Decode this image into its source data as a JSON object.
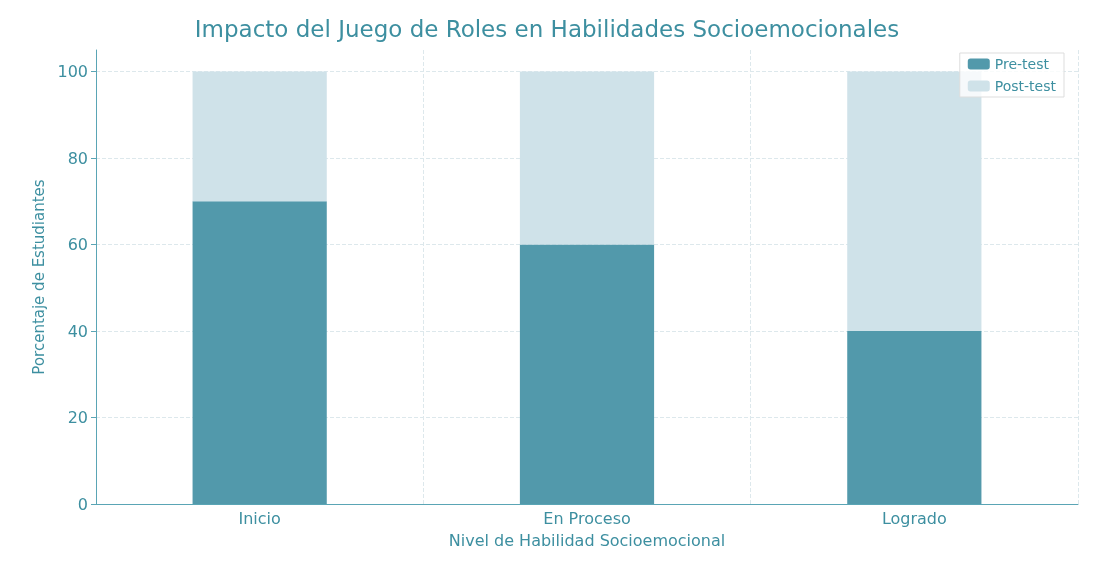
{
  "chart_data": {
    "type": "bar",
    "title": "Impacto del Juego de Roles en Habilidades Socioemocionales",
    "xlabel": "Nivel de Habilidad Socioemocional",
    "ylabel": "Porcentaje de Estudiantes",
    "categories": [
      "Inicio",
      "En Proceso",
      "Logrado"
    ],
    "stacked": true,
    "series": [
      {
        "name": "Pre-test",
        "color": "#5299ab",
        "values": [
          70,
          60,
          40
        ]
      },
      {
        "name": "Post-test",
        "color": "#cfe2e9",
        "values": [
          30,
          40,
          60
        ]
      }
    ],
    "ylim": [
      0,
      105
    ],
    "yticks": [
      0,
      20,
      40,
      60,
      80,
      100
    ],
    "grid": true,
    "legend": "top right"
  }
}
